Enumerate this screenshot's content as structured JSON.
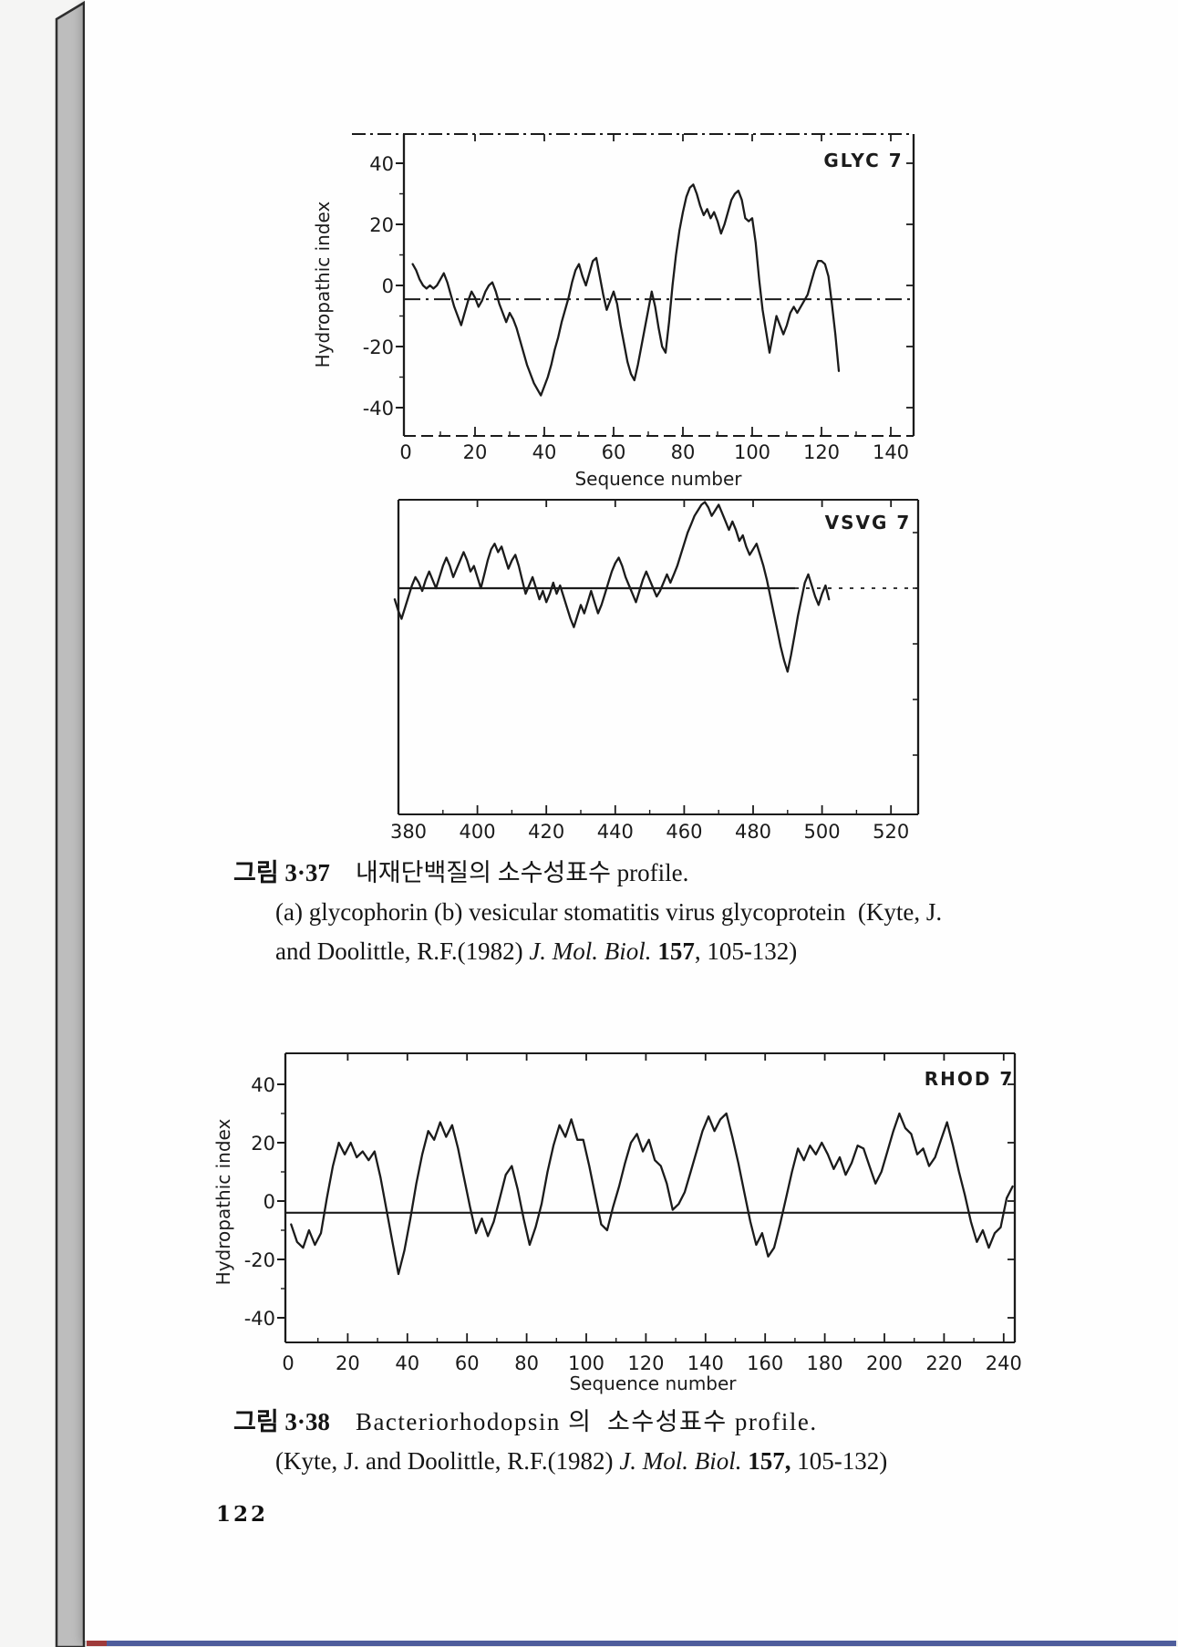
{
  "page": {
    "number": "122",
    "ink_color": "#1b1b1b",
    "paper_color": "#fefefe",
    "edge_color": "#bdbdbd",
    "bottom_line_color": "#4e5d9c",
    "bottom_line_accent": "#9e3a3a"
  },
  "figure1": {
    "caption": {
      "label": "그림 3·37",
      "title": "내재단백질의 소수성표수 profile.",
      "line2": "(a) glycophorin (b) vesicular stomatitis virus glycoprotein  (Kyte, J.",
      "line3_pre": "and Doolittle, R.F.(1982) ",
      "line3_journal": "J. Mol. Biol.",
      "line3_vol": " 157",
      "line3_tail": ", 105-132)"
    }
  },
  "figure2": {
    "caption": {
      "label": "그림 3·38",
      "title": "Bacteriorhodopsin 의  소수성표수 profile.",
      "line2_pre": "(Kyte, J. and Doolittle, R.F.(1982) ",
      "line2_journal": "J. Mol. Biol.",
      "line2_vol": " 157,",
      "line2_tail": " 105-132)"
    }
  },
  "chart_data": [
    {
      "id": "glycophorin",
      "type": "line",
      "panel_label": "GLYC 7",
      "ylabel": "Hydropathic index",
      "xlabel": "Sequence number",
      "x_ticks": [
        0,
        20,
        40,
        60,
        80,
        100,
        120,
        140
      ],
      "y_ticks": [
        40,
        20,
        0,
        -20,
        -40
      ],
      "xlim": [
        0,
        147
      ],
      "ylim": [
        -49,
        50
      ],
      "midline_y": -4.5,
      "grid": false,
      "x_start": 2,
      "x_step": 1,
      "y": [
        7,
        5,
        2,
        0,
        -1,
        0,
        -1,
        0,
        2,
        4,
        1,
        -3,
        -7,
        -10,
        -13,
        -9,
        -5,
        -2,
        -4,
        -7,
        -5,
        -2,
        0,
        1,
        -2,
        -6,
        -9,
        -12,
        -9,
        -11,
        -14,
        -18,
        -22,
        -26,
        -29,
        -32,
        -34,
        -36,
        -33,
        -30,
        -26,
        -21,
        -17,
        -12,
        -8,
        -4,
        1,
        5,
        7,
        3,
        0,
        4,
        8,
        9,
        3,
        -3,
        -8,
        -5,
        -2,
        -6,
        -13,
        -19,
        -25,
        -29,
        -31,
        -26,
        -20,
        -14,
        -8,
        -2,
        -7,
        -14,
        -20,
        -22,
        -12,
        0,
        10,
        18,
        24,
        29,
        32,
        33,
        30,
        26,
        23,
        25,
        22,
        24,
        21,
        17,
        20,
        24,
        28,
        30,
        31,
        28,
        22,
        21,
        22,
        14,
        2,
        -8,
        -15,
        -22,
        -16,
        -10,
        -13,
        -16,
        -13,
        -9,
        -7,
        -9,
        -7,
        -5,
        -3,
        1,
        5,
        8,
        8,
        7,
        3,
        -6,
        -16,
        -28
      ]
    },
    {
      "id": "vsv-glycoprotein",
      "type": "line",
      "panel_label": "VSVG 7",
      "ylabel": "",
      "xlabel": "",
      "x_ticks": [
        380,
        400,
        420,
        440,
        460,
        480,
        500,
        520
      ],
      "y_ticks": [],
      "xlim": [
        377,
        528
      ],
      "ylim": [
        -80,
        31
      ],
      "midline_y": 0,
      "grid": false,
      "x_start": 376,
      "x_step": 1,
      "y": [
        -4,
        -8,
        -11,
        -7,
        -3,
        1,
        4,
        2,
        -1,
        3,
        6,
        3,
        0,
        4,
        8,
        11,
        8,
        4,
        7,
        10,
        13,
        10,
        6,
        8,
        4,
        0,
        5,
        10,
        14,
        16,
        13,
        15,
        11,
        7,
        10,
        12,
        8,
        3,
        -2,
        1,
        4,
        0,
        -4,
        -1,
        -5,
        -2,
        2,
        -2,
        1,
        -3,
        -7,
        -11,
        -14,
        -10,
        -6,
        -9,
        -5,
        -1,
        -5,
        -9,
        -6,
        -2,
        2,
        6,
        9,
        11,
        8,
        4,
        1,
        -2,
        -5,
        -1,
        3,
        6,
        3,
        0,
        -3,
        -1,
        2,
        5,
        2,
        5,
        8,
        12,
        16,
        20,
        23,
        26,
        28,
        30,
        31,
        29,
        26,
        28,
        30,
        27,
        24,
        21,
        24,
        21,
        17,
        19,
        15,
        12,
        14,
        16,
        12,
        8,
        3,
        -3,
        -9,
        -15,
        -21,
        -26,
        -30,
        -24,
        -17,
        -10,
        -4,
        2,
        5,
        1,
        -3,
        -6,
        -2,
        1,
        -4
      ]
    },
    {
      "id": "bacteriorhodopsin",
      "type": "line",
      "panel_label": "RHOD 7",
      "ylabel": "Hydropathic index",
      "xlabel": "Sequence number",
      "x_ticks": [
        0,
        20,
        40,
        60,
        80,
        100,
        120,
        140,
        160,
        180,
        200,
        220,
        240
      ],
      "y_ticks": [
        40,
        20,
        0,
        -20,
        -40
      ],
      "xlim": [
        -1,
        244
      ],
      "ylim": [
        -48,
        51
      ],
      "midline_y": -4,
      "grid": false,
      "x_start": 1,
      "x_step": 2,
      "y": [
        -8,
        -14,
        -16,
        -10,
        -15,
        -11,
        1,
        12,
        20,
        16,
        20,
        15,
        17,
        14,
        17,
        8,
        -3,
        -14,
        -25,
        -17,
        -6,
        6,
        16,
        24,
        21,
        27,
        22,
        26,
        18,
        8,
        -2,
        -11,
        -6,
        -12,
        -7,
        1,
        9,
        12,
        4,
        -6,
        -15,
        -9,
        -1,
        10,
        19,
        26,
        22,
        28,
        21,
        21,
        12,
        2,
        -8,
        -10,
        -2,
        5,
        13,
        20,
        23,
        17,
        21,
        14,
        12,
        6,
        -3,
        -1,
        3,
        10,
        17,
        24,
        29,
        24,
        28,
        30,
        22,
        13,
        3,
        -7,
        -15,
        -11,
        -19,
        -16,
        -8,
        1,
        10,
        18,
        14,
        19,
        16,
        20,
        16,
        11,
        15,
        9,
        13,
        19,
        18,
        12,
        6,
        10,
        17,
        24,
        30,
        25,
        23,
        16,
        18,
        12,
        15,
        21,
        27,
        19,
        10,
        2,
        -7,
        -14,
        -10,
        -16,
        -11,
        -9,
        1,
        5
      ]
    }
  ]
}
